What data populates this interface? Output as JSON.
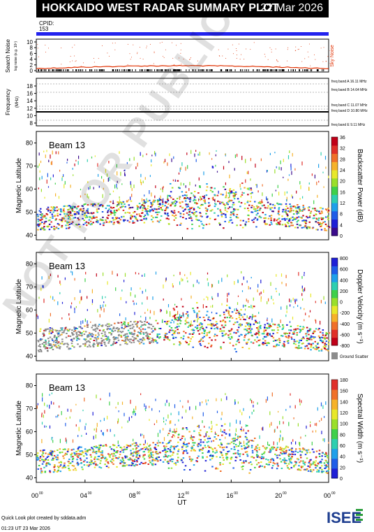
{
  "header": {
    "title": "HOKKAIDO WEST RADAR SUMMARY PLOT",
    "date": "22 Mar 2026"
  },
  "cpid": {
    "label": "CPID:",
    "value": "153"
  },
  "noise_panel": {
    "ylabel": "Search Noise",
    "ylabel_sub": "log noise (e.g. 10⁵)",
    "ticks": [
      "0",
      "2",
      "4",
      "6",
      "8",
      "10"
    ],
    "legend": "Sky Noise"
  },
  "freq_panel": {
    "ylabel": "Frequency",
    "unit": "(MHz)",
    "ticks": [
      "8",
      "10",
      "12",
      "14",
      "16",
      "18"
    ],
    "bands": [
      "freq band A 16.11 MHz",
      "freq band B 14.64 MHz",
      "freq band C 11.07 MHz",
      "freq band D 10.80 MHz",
      "freq band E 9.11 MHz"
    ]
  },
  "x_axis": {
    "ticks": [
      "00",
      "04",
      "08",
      "12",
      "16",
      "20",
      "00"
    ],
    "tick_sup": "00",
    "label": "UT"
  },
  "panels": [
    {
      "beam": "Beam 13",
      "ylabel": "Magnetic Latitude",
      "yticks": [
        "40",
        "50",
        "60",
        "70",
        "80"
      ],
      "cbar_label": "Backscatter Power (dB)",
      "cbar_ticks": [
        "0",
        "4",
        "8",
        "12",
        "16",
        "20",
        "24",
        "28",
        "32",
        "36"
      ]
    },
    {
      "beam": "Beam 13",
      "ylabel": "Magnetic Latitude",
      "yticks": [
        "40",
        "50",
        "60",
        "70",
        "80"
      ],
      "cbar_label": "Doppler Velocity (m s⁻¹)",
      "cbar_ticks": [
        "800",
        "600",
        "400",
        "200",
        "0",
        "-200",
        "-400",
        "-600",
        "-800"
      ],
      "ground_label": "Ground Scatter"
    },
    {
      "beam": "Beam 13",
      "ylabel": "Magnetic Latitude",
      "yticks": [
        "40",
        "50",
        "60",
        "70",
        "80"
      ],
      "cbar_label": "Spectral Width (m s⁻¹)",
      "cbar_ticks": [
        "0",
        "20",
        "40",
        "60",
        "80",
        "100",
        "120",
        "140",
        "160",
        "180"
      ]
    }
  ],
  "footer": {
    "credit": "Quick Look plot created by sddata.adm",
    "timestamp": "01:23 UT 23 Mar 2026",
    "logo": "ISEE"
  },
  "watermark": "NOT FOR PUBLICATION",
  "colors": {
    "cpid_bar": "#2222ee",
    "ground": "#8c8c8c",
    "sky_noise": "#e03000"
  },
  "chart_data": [
    {
      "type": "heatmap",
      "title": "Beam 13",
      "xlabel": "UT",
      "ylabel": "Magnetic Latitude",
      "xlim": [
        0,
        24
      ],
      "ylim": [
        38,
        85
      ],
      "colorbar": "Backscatter Power (dB)",
      "colorbar_range": [
        0,
        36
      ]
    },
    {
      "type": "heatmap",
      "title": "Beam 13",
      "xlabel": "UT",
      "ylabel": "Magnetic Latitude",
      "xlim": [
        0,
        24
      ],
      "ylim": [
        38,
        85
      ],
      "colorbar": "Doppler Velocity (m s⁻¹)",
      "colorbar_range": [
        -800,
        800
      ]
    },
    {
      "type": "heatmap",
      "title": "Beam 13",
      "xlabel": "UT",
      "ylabel": "Magnetic Latitude",
      "xlim": [
        0,
        24
      ],
      "ylim": [
        38,
        85
      ],
      "colorbar": "Spectral Width (m s⁻¹)",
      "colorbar_range": [
        0,
        180
      ]
    }
  ]
}
